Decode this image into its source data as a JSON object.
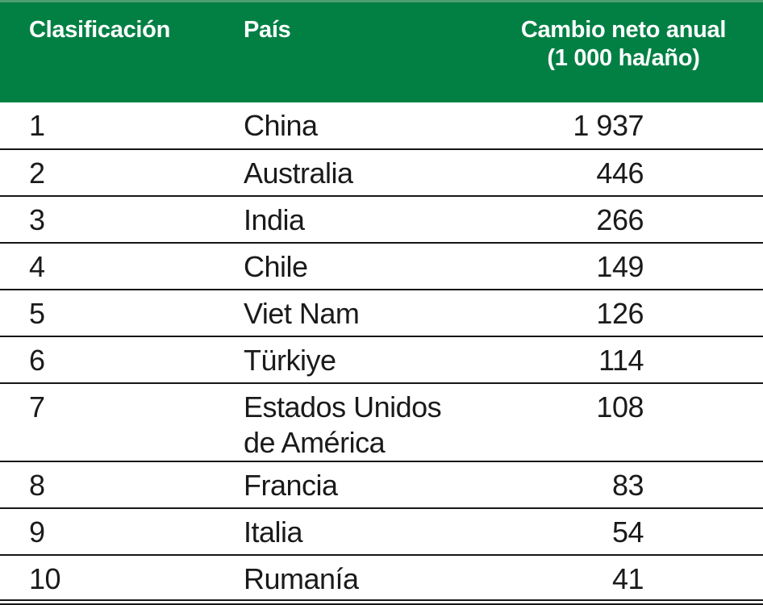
{
  "colors": {
    "header_background": "#028044",
    "header_top_strip": "#4d9e72",
    "header_text": "#ffffff",
    "body_text": "#1a1a1a",
    "row_border": "#161616"
  },
  "table": {
    "columns": [
      {
        "label": "Clasificación"
      },
      {
        "label": "País"
      },
      {
        "label": "Cambio neto anual",
        "label_line2": "(1 000 ha/año)"
      }
    ],
    "rows": [
      {
        "rank": "1",
        "country": "China",
        "value": "1 937"
      },
      {
        "rank": "2",
        "country": "Australia",
        "value": "446"
      },
      {
        "rank": "3",
        "country": "India",
        "value": "266"
      },
      {
        "rank": "4",
        "country": "Chile",
        "value": "149"
      },
      {
        "rank": "5",
        "country": "Viet Nam",
        "value": "126"
      },
      {
        "rank": "6",
        "country": "Türkiye",
        "value": "114"
      },
      {
        "rank": "7",
        "country": "Estados Unidos de América",
        "value": "108"
      },
      {
        "rank": "8",
        "country": "Francia",
        "value": "83"
      },
      {
        "rank": "9",
        "country": "Italia",
        "value": "54"
      },
      {
        "rank": "10",
        "country": "Rumanía",
        "value": "41"
      }
    ]
  },
  "chart_data": {
    "type": "table",
    "title": "",
    "columns": [
      "Clasificación",
      "País",
      "Cambio neto anual (1 000 ha/año)"
    ],
    "rows": [
      [
        1,
        "China",
        1937
      ],
      [
        2,
        "Australia",
        446
      ],
      [
        3,
        "India",
        266
      ],
      [
        4,
        "Chile",
        149
      ],
      [
        5,
        "Viet Nam",
        126
      ],
      [
        6,
        "Türkiye",
        114
      ],
      [
        7,
        "Estados Unidos de América",
        108
      ],
      [
        8,
        "Francia",
        83
      ],
      [
        9,
        "Italia",
        54
      ],
      [
        10,
        "Rumanía",
        41
      ]
    ],
    "layout_hints": {
      "header_style": "green-background-white-bold-text",
      "value_alignment": "right",
      "grid": "horizontal-rules-only",
      "units": "1 000 ha/año"
    }
  }
}
